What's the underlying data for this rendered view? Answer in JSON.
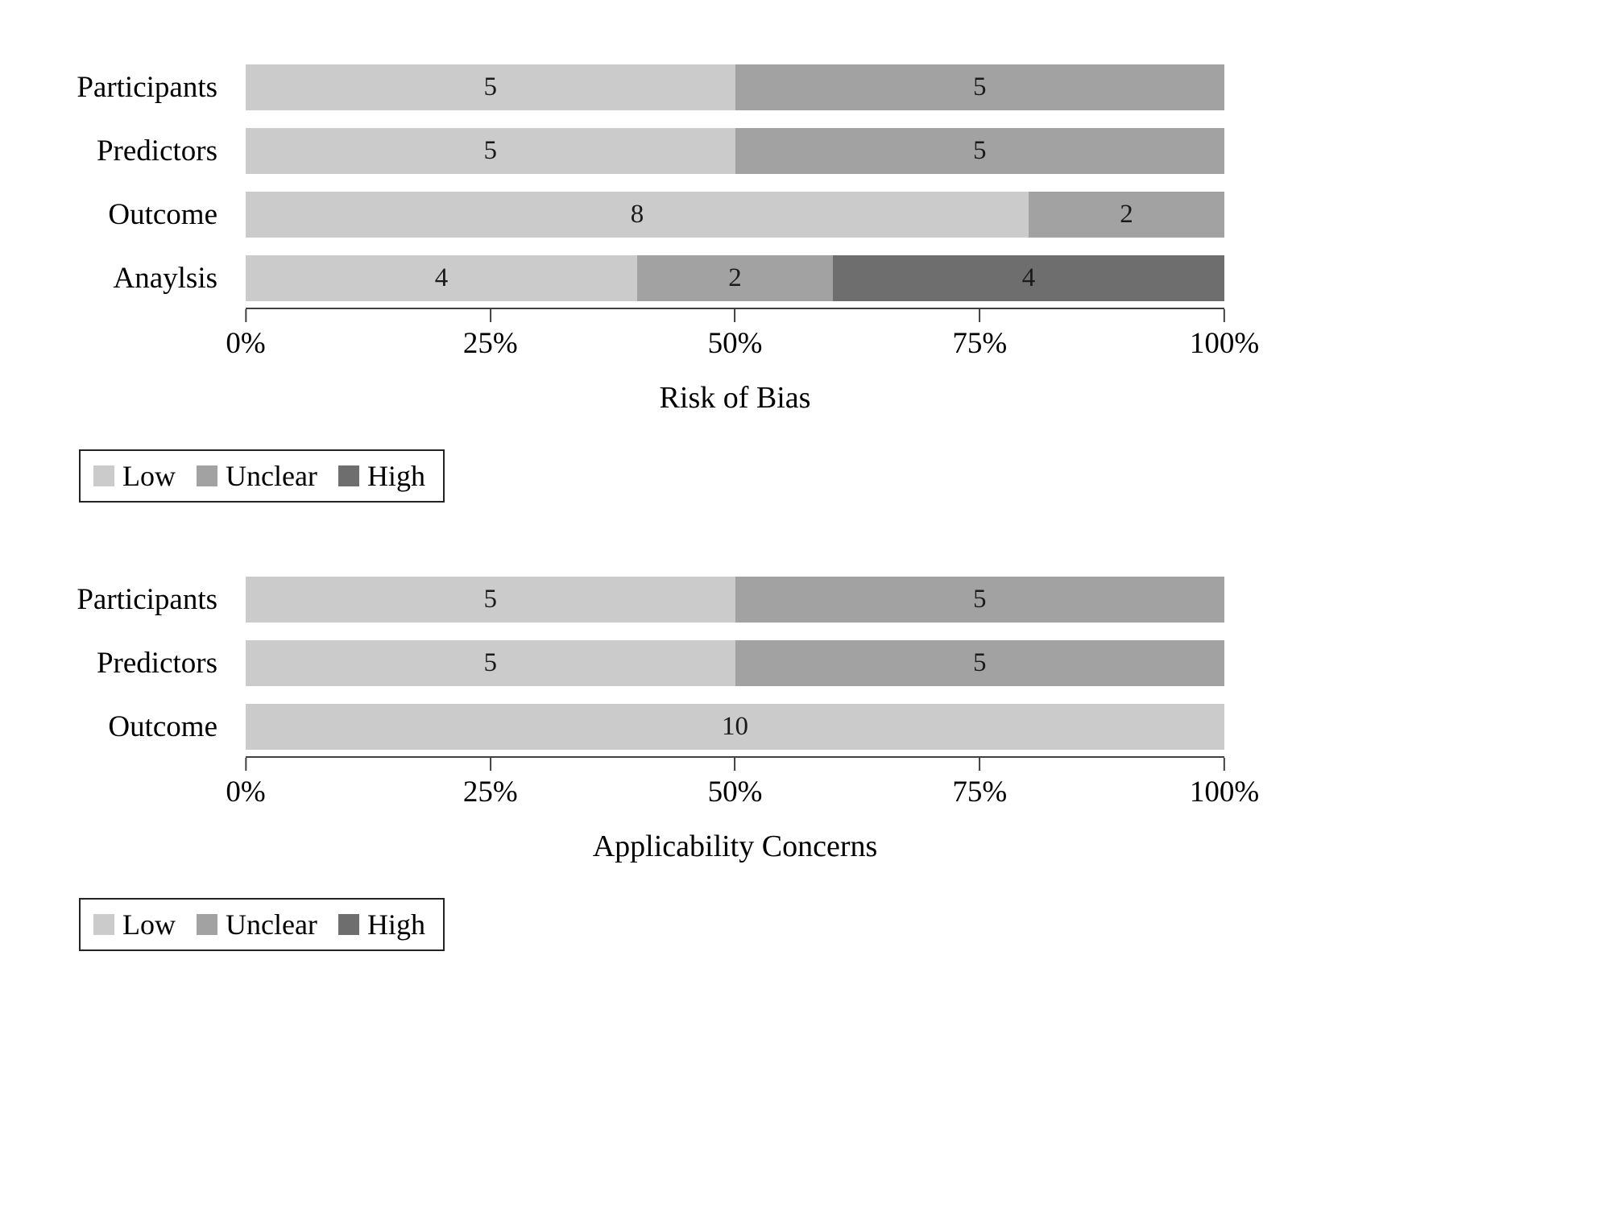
{
  "legend": [
    "Low",
    "Unclear",
    "High"
  ],
  "series_colors": {
    "Low": "#cbcbcb",
    "Unclear": "#a2a2a2",
    "High": "#6e6e6e"
  },
  "chart_data": [
    {
      "type": "bar",
      "orientation": "horizontal",
      "stacked": true,
      "xlabel": "Risk of Bias",
      "xlim": [
        0,
        100
      ],
      "x_ticks": [
        "0%",
        "25%",
        "50%",
        "75%",
        "100%"
      ],
      "legend_position": "bottom-left",
      "grid": false,
      "categories": [
        "Participants",
        "Predictors",
        "Outcome",
        "Anaylsis"
      ],
      "series": [
        {
          "name": "Low",
          "values": [
            5,
            5,
            8,
            4
          ]
        },
        {
          "name": "Unclear",
          "values": [
            5,
            5,
            2,
            2
          ]
        },
        {
          "name": "High",
          "values": [
            0,
            0,
            0,
            4
          ]
        }
      ]
    },
    {
      "type": "bar",
      "orientation": "horizontal",
      "stacked": true,
      "xlabel": "Applicability Concerns",
      "xlim": [
        0,
        100
      ],
      "x_ticks": [
        "0%",
        "25%",
        "50%",
        "75%",
        "100%"
      ],
      "legend_position": "bottom-left",
      "grid": false,
      "categories": [
        "Participants",
        "Predictors",
        "Outcome"
      ],
      "series": [
        {
          "name": "Low",
          "values": [
            5,
            5,
            10
          ]
        },
        {
          "name": "Unclear",
          "values": [
            5,
            5,
            0
          ]
        },
        {
          "name": "High",
          "values": [
            0,
            0,
            0
          ]
        }
      ]
    }
  ]
}
